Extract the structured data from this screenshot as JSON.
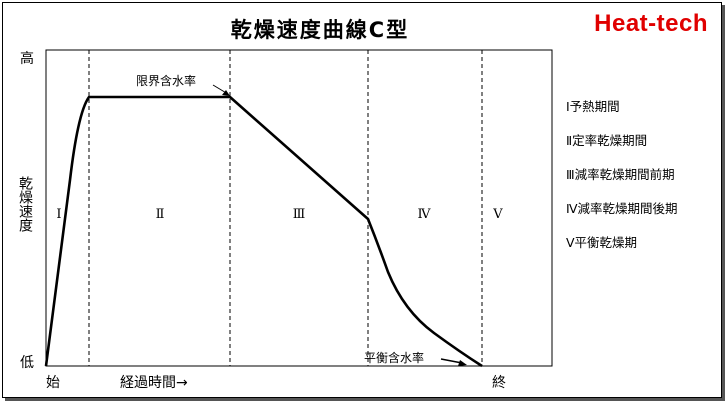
{
  "title": "乾燥速度曲線C型",
  "brand": "Heat-tech",
  "axes": {
    "y_high": "高",
    "y_low": "低",
    "y_label": "乾燥速度",
    "x_start": "始",
    "x_end": "終",
    "x_label": "経過時間→"
  },
  "phases": [
    "Ⅰ",
    "Ⅱ",
    "Ⅲ",
    "Ⅳ",
    "Ⅴ"
  ],
  "annotations": {
    "critical_moisture": "限界含水率",
    "equilibrium_moisture": "平衡含水率"
  },
  "legend": [
    "Ⅰ予熱期間",
    "Ⅱ定率乾燥期間",
    "Ⅲ減率乾燥期間前期",
    "Ⅳ減率乾燥期間後期",
    "Ⅴ平衡乾燥期"
  ],
  "colors": {
    "brand": "#e00000",
    "line": "#000000"
  }
}
